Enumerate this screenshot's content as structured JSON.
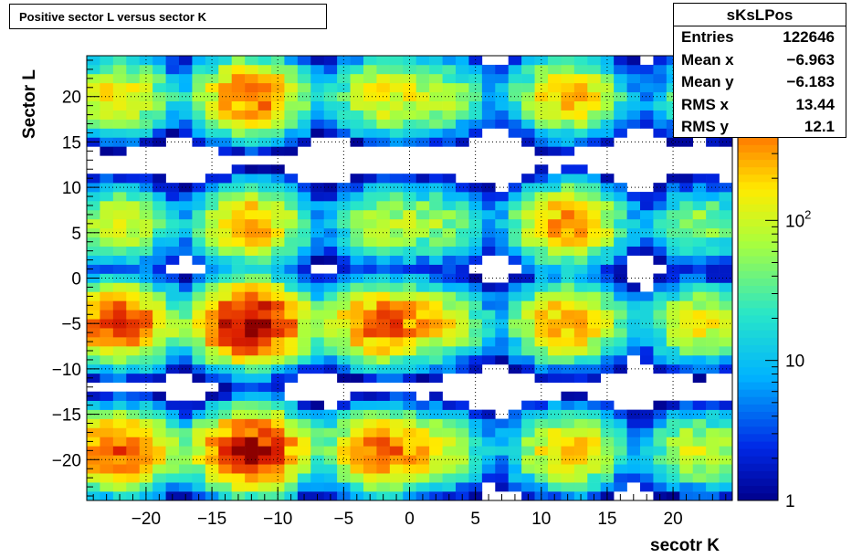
{
  "chart_data": {
    "type": "heatmap",
    "title": "Positive sector L versus sector K",
    "xlabel": "secotr K",
    "ylabel": "Sector L",
    "xlim": [
      -24.5,
      24.5
    ],
    "ylim": [
      -24.5,
      24.5
    ],
    "x_ticks": [
      "−20",
      "−15",
      "−10",
      "−5",
      "0",
      "5",
      "10",
      "15",
      "20"
    ],
    "x_tick_values": [
      -20,
      -15,
      -10,
      -5,
      0,
      5,
      10,
      15,
      20
    ],
    "y_ticks": [
      "−20",
      "−15",
      "−10",
      "−5",
      "0",
      "5",
      "10",
      "15",
      "20"
    ],
    "y_tick_values": [
      -20,
      -15,
      -10,
      -5,
      0,
      5,
      10,
      15,
      20
    ],
    "grid": true,
    "z_scale": "log",
    "z_range": [
      1,
      1500
    ],
    "z_ticks": [
      "1",
      "10",
      "10^2"
    ],
    "z_tick_values": [
      1,
      10,
      100
    ],
    "colormap": "rainbow",
    "peak_clusters": [
      {
        "x": -12,
        "y": -5,
        "value": 1500
      },
      {
        "x": -12,
        "y": -19,
        "value": 1200
      },
      {
        "x": -22,
        "y": -5,
        "value": 700
      },
      {
        "x": -22,
        "y": -19,
        "value": 600
      },
      {
        "x": -12,
        "y": 20,
        "value": 500
      },
      {
        "x": -12,
        "y": 6,
        "value": 300
      },
      {
        "x": -2,
        "y": -5,
        "value": 600
      },
      {
        "x": -2,
        "y": -19,
        "value": 500
      },
      {
        "x": 12,
        "y": -5,
        "value": 350
      },
      {
        "x": 12,
        "y": -19,
        "value": 250
      },
      {
        "x": 12,
        "y": 6,
        "value": 350
      },
      {
        "x": 12,
        "y": 20,
        "value": 250
      },
      {
        "x": 2,
        "y": -5,
        "value": 150
      },
      {
        "x": 2,
        "y": -19,
        "value": 120
      },
      {
        "x": -22,
        "y": 20,
        "value": 180
      },
      {
        "x": -22,
        "y": 6,
        "value": 120
      },
      {
        "x": 22,
        "y": -5,
        "value": 150
      },
      {
        "x": 22,
        "y": -19,
        "value": 120
      },
      {
        "x": -2,
        "y": 20,
        "value": 150
      },
      {
        "x": 2,
        "y": 20,
        "value": 90
      },
      {
        "x": -2,
        "y": 6,
        "value": 90
      },
      {
        "x": 2,
        "y": 6,
        "value": 60
      },
      {
        "x": 22,
        "y": 6,
        "value": 60
      },
      {
        "x": 22,
        "y": 20,
        "value": 50
      }
    ]
  },
  "stats": {
    "title": "sKsLPos",
    "rows": [
      {
        "label": "Entries",
        "value": "122646"
      },
      {
        "label": "Mean x",
        "value": "−6.963"
      },
      {
        "label": "Mean y",
        "value": "−6.183"
      },
      {
        "label": "RMS x",
        "value": "13.44"
      },
      {
        "label": "RMS y",
        "value": "12.1"
      }
    ]
  }
}
